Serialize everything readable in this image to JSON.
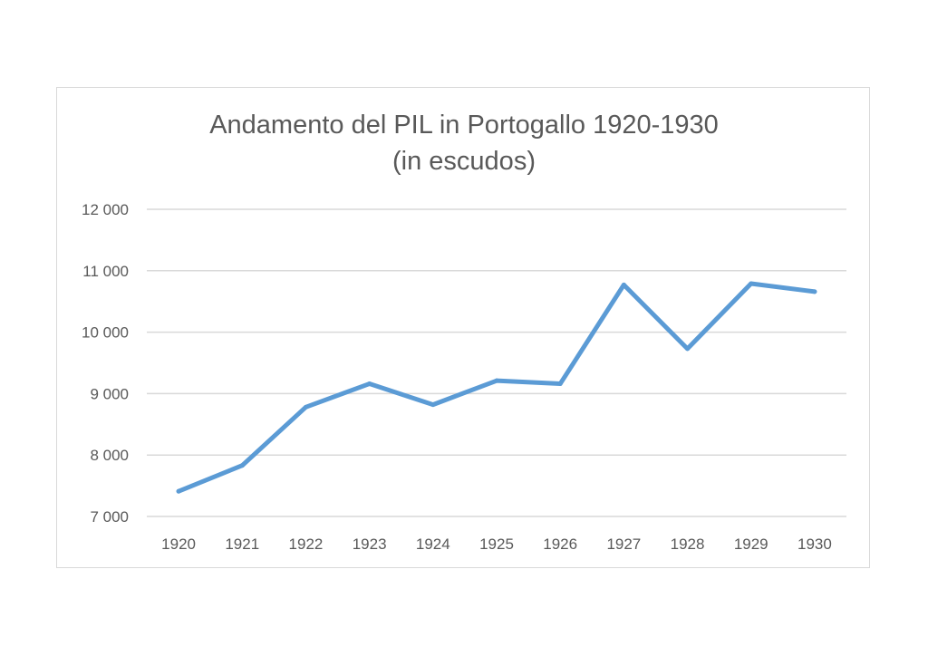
{
  "chart_data": {
    "type": "line",
    "title": "Andamento del PIL in Portogallo 1920-1930",
    "subtitle": "(in escudos)",
    "xlabel": "",
    "ylabel": "",
    "categories": [
      "1920",
      "1921",
      "1922",
      "1923",
      "1924",
      "1925",
      "1926",
      "1927",
      "1928",
      "1929",
      "1930"
    ],
    "series": [
      {
        "values": [
          7410,
          7830,
          8780,
          9160,
          8820,
          9210,
          9160,
          10770,
          9730,
          10790,
          10660
        ]
      }
    ],
    "ylim": [
      7000,
      12000
    ],
    "yticks": [
      7000,
      8000,
      9000,
      10000,
      11000,
      12000
    ],
    "ytick_labels": [
      "7 000",
      "8 000",
      "9 000",
      "10 000",
      "11 000",
      "12 000"
    ],
    "grid": "horizontal",
    "legend": "none",
    "line_color": "#5b9bd5",
    "grid_color": "#d9d9d9",
    "text_color": "#595959"
  }
}
